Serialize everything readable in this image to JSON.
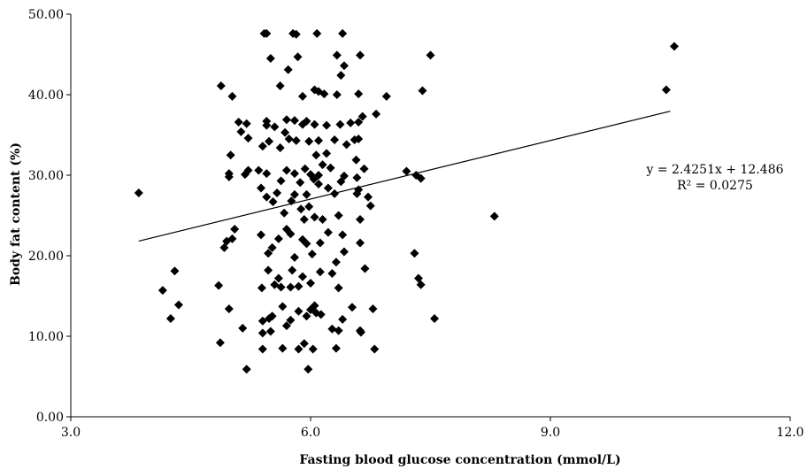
{
  "chart_data": {
    "type": "scatter",
    "xlabel": "Fasting blood glucose concentration  (mmol/L)",
    "ylabel": "Body fat content (%)",
    "xlim": [
      3.0,
      12.0
    ],
    "ylim": [
      0.0,
      50.0
    ],
    "x_ticks": [
      "3.0",
      "6.0",
      "9.0",
      "12.0"
    ],
    "y_ticks": [
      "0.00",
      "10.00",
      "20.00",
      "30.00",
      "40.00",
      "50.00"
    ],
    "grid": false,
    "legend": "none",
    "marker": "diamond",
    "marker_color": "#000000",
    "trendline": {
      "slope": 2.4251,
      "intercept": 12.486,
      "x_range": [
        3.85,
        10.5
      ],
      "equation": "y = 2.4251x + 12.486",
      "r_squared": "R² = 0.0275"
    },
    "points": [
      [
        3.85,
        27.8
      ],
      [
        4.15,
        15.7
      ],
      [
        4.25,
        12.2
      ],
      [
        4.3,
        18.1
      ],
      [
        4.35,
        13.9
      ],
      [
        4.85,
        16.3
      ],
      [
        4.87,
        9.2
      ],
      [
        4.88,
        41.1
      ],
      [
        4.92,
        21.0
      ],
      [
        4.95,
        21.8
      ],
      [
        4.98,
        13.4
      ],
      [
        4.98,
        29.8
      ],
      [
        4.98,
        30.2
      ],
      [
        5.0,
        32.5
      ],
      [
        5.02,
        22.1
      ],
      [
        5.02,
        39.8
      ],
      [
        5.05,
        23.3
      ],
      [
        5.1,
        36.6
      ],
      [
        5.13,
        35.4
      ],
      [
        5.15,
        11.0
      ],
      [
        5.18,
        30.1
      ],
      [
        5.2,
        5.9
      ],
      [
        5.2,
        36.4
      ],
      [
        5.22,
        34.6
      ],
      [
        5.22,
        30.6
      ],
      [
        5.35,
        30.6
      ],
      [
        5.38,
        28.4
      ],
      [
        5.38,
        22.6
      ],
      [
        5.39,
        16.0
      ],
      [
        5.4,
        11.9
      ],
      [
        5.4,
        10.4
      ],
      [
        5.4,
        8.4
      ],
      [
        5.4,
        33.6
      ],
      [
        5.42,
        47.6
      ],
      [
        5.45,
        47.6
      ],
      [
        5.45,
        36.7
      ],
      [
        5.45,
        36.2
      ],
      [
        5.45,
        30.2
      ],
      [
        5.45,
        27.3
      ],
      [
        5.47,
        20.3
      ],
      [
        5.47,
        18.2
      ],
      [
        5.48,
        12.2
      ],
      [
        5.48,
        34.2
      ],
      [
        5.5,
        44.5
      ],
      [
        5.5,
        10.6
      ],
      [
        5.52,
        21.0
      ],
      [
        5.52,
        12.5
      ],
      [
        5.53,
        26.7
      ],
      [
        5.55,
        36.0
      ],
      [
        5.55,
        16.4
      ],
      [
        5.58,
        27.8
      ],
      [
        5.6,
        17.2
      ],
      [
        5.6,
        22.1
      ],
      [
        5.62,
        41.1
      ],
      [
        5.62,
        33.4
      ],
      [
        5.63,
        29.3
      ],
      [
        5.63,
        16.1
      ],
      [
        5.65,
        8.5
      ],
      [
        5.65,
        13.7
      ],
      [
        5.67,
        25.3
      ],
      [
        5.68,
        35.3
      ],
      [
        5.7,
        36.9
      ],
      [
        5.7,
        30.6
      ],
      [
        5.7,
        23.3
      ],
      [
        5.7,
        11.3
      ],
      [
        5.72,
        43.1
      ],
      [
        5.73,
        34.5
      ],
      [
        5.75,
        22.7
      ],
      [
        5.75,
        16.1
      ],
      [
        5.75,
        12.0
      ],
      [
        5.76,
        26.8
      ],
      [
        5.77,
        18.2
      ],
      [
        5.78,
        47.6
      ],
      [
        5.8,
        36.8
      ],
      [
        5.8,
        30.2
      ],
      [
        5.8,
        27.6
      ],
      [
        5.8,
        19.8
      ],
      [
        5.82,
        47.5
      ],
      [
        5.82,
        34.3
      ],
      [
        5.84,
        44.7
      ],
      [
        5.85,
        16.2
      ],
      [
        5.85,
        13.1
      ],
      [
        5.85,
        8.4
      ],
      [
        5.87,
        29.1
      ],
      [
        5.88,
        25.8
      ],
      [
        5.9,
        39.8
      ],
      [
        5.9,
        36.3
      ],
      [
        5.9,
        22.0
      ],
      [
        5.9,
        17.4
      ],
      [
        5.92,
        24.5
      ],
      [
        5.92,
        9.1
      ],
      [
        5.93,
        30.8
      ],
      [
        5.95,
        36.7
      ],
      [
        5.95,
        27.6
      ],
      [
        5.95,
        21.5
      ],
      [
        5.95,
        12.5
      ],
      [
        5.97,
        5.9
      ],
      [
        5.98,
        34.2
      ],
      [
        5.98,
        26.1
      ],
      [
        6.0,
        30.1
      ],
      [
        6.0,
        16.6
      ],
      [
        6.0,
        13.3
      ],
      [
        6.02,
        20.2
      ],
      [
        6.03,
        8.4
      ],
      [
        6.04,
        29.5
      ],
      [
        6.05,
        40.6
      ],
      [
        6.05,
        36.3
      ],
      [
        6.05,
        24.8
      ],
      [
        6.05,
        13.8
      ],
      [
        6.07,
        32.5
      ],
      [
        6.07,
        12.9
      ],
      [
        6.08,
        47.6
      ],
      [
        6.1,
        40.4
      ],
      [
        6.1,
        34.3
      ],
      [
        6.1,
        30.0
      ],
      [
        6.1,
        28.9
      ],
      [
        6.12,
        21.6
      ],
      [
        6.12,
        18.0
      ],
      [
        6.13,
        12.7
      ],
      [
        6.15,
        31.3
      ],
      [
        6.15,
        24.5
      ],
      [
        6.17,
        40.1
      ],
      [
        6.2,
        36.2
      ],
      [
        6.2,
        32.7
      ],
      [
        6.22,
        28.4
      ],
      [
        6.22,
        22.9
      ],
      [
        6.25,
        30.9
      ],
      [
        6.27,
        17.8
      ],
      [
        6.27,
        10.9
      ],
      [
        6.3,
        34.4
      ],
      [
        6.3,
        27.7
      ],
      [
        6.32,
        19.2
      ],
      [
        6.32,
        8.5
      ],
      [
        6.33,
        44.9
      ],
      [
        6.33,
        40.0
      ],
      [
        6.35,
        25.0
      ],
      [
        6.35,
        16.0
      ],
      [
        6.35,
        10.7
      ],
      [
        6.37,
        36.3
      ],
      [
        6.38,
        29.2
      ],
      [
        6.38,
        42.4
      ],
      [
        6.4,
        47.6
      ],
      [
        6.4,
        22.6
      ],
      [
        6.4,
        12.1
      ],
      [
        6.42,
        43.6
      ],
      [
        6.42,
        29.9
      ],
      [
        6.42,
        20.5
      ],
      [
        6.45,
        33.8
      ],
      [
        6.5,
        36.5
      ],
      [
        6.52,
        13.6
      ],
      [
        6.55,
        34.4
      ],
      [
        6.57,
        31.9
      ],
      [
        6.58,
        29.7
      ],
      [
        6.58,
        27.7
      ],
      [
        6.6,
        40.1
      ],
      [
        6.6,
        36.6
      ],
      [
        6.6,
        34.5
      ],
      [
        6.6,
        28.2
      ],
      [
        6.62,
        44.9
      ],
      [
        6.62,
        24.5
      ],
      [
        6.62,
        21.6
      ],
      [
        6.62,
        10.7
      ],
      [
        6.63,
        10.5
      ],
      [
        6.65,
        37.3
      ],
      [
        6.67,
        30.8
      ],
      [
        6.68,
        18.4
      ],
      [
        6.72,
        27.3
      ],
      [
        6.75,
        26.2
      ],
      [
        6.78,
        13.4
      ],
      [
        6.8,
        8.4
      ],
      [
        6.82,
        37.6
      ],
      [
        6.95,
        39.8
      ],
      [
        7.2,
        30.5
      ],
      [
        7.3,
        20.3
      ],
      [
        7.32,
        30.0
      ],
      [
        7.35,
        17.2
      ],
      [
        7.38,
        29.6
      ],
      [
        7.4,
        40.5
      ],
      [
        7.38,
        16.4
      ],
      [
        7.5,
        44.9
      ],
      [
        7.55,
        12.2
      ],
      [
        8.3,
        24.9
      ],
      [
        10.45,
        40.6
      ],
      [
        10.55,
        46.0
      ]
    ]
  }
}
